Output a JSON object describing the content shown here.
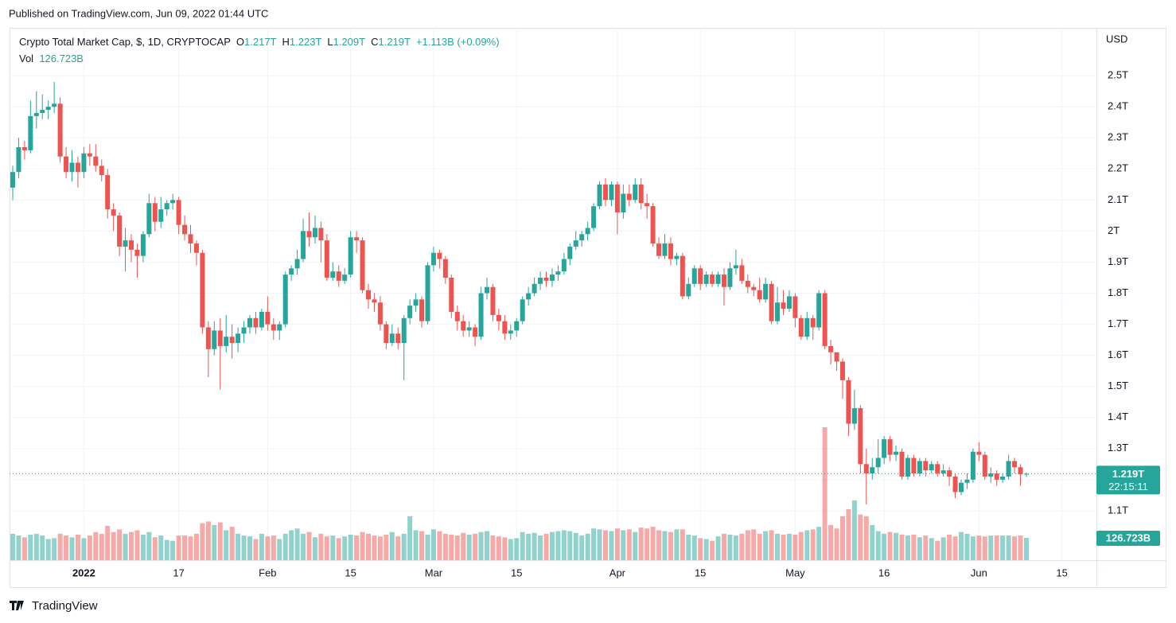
{
  "header": {
    "published": "Published on TradingView.com, Jun 09, 2022 01:44 UTC",
    "footer": "TradingView"
  },
  "chart_data": {
    "type": "candlestick",
    "title": "Crypto Total Market Cap, $, 1D, CRYPTOCAP",
    "legend": {
      "o": "O",
      "open": "1.217T",
      "h": "H",
      "high": "1.223T",
      "l": "L",
      "low": "1.209T",
      "c": "C",
      "close": "1.219T",
      "change": "+1.113B (+0.09%)",
      "vol": "Vol",
      "volume": "126.723B"
    },
    "y_axis_label": "USD",
    "x": [
      "2021-12-20",
      "2021-12-21",
      "2021-12-22",
      "2021-12-23",
      "2021-12-24",
      "2021-12-25",
      "2021-12-26",
      "2021-12-27",
      "2021-12-28",
      "2021-12-29",
      "2021-12-30",
      "2021-12-31",
      "2022-01-01",
      "2022-01-02",
      "2022-01-03",
      "2022-01-04",
      "2022-01-05",
      "2022-01-06",
      "2022-01-07",
      "2022-01-08",
      "2022-01-09",
      "2022-01-10",
      "2022-01-11",
      "2022-01-12",
      "2022-01-13",
      "2022-01-14",
      "2022-01-15",
      "2022-01-16",
      "2022-01-17",
      "2022-01-18",
      "2022-01-19",
      "2022-01-20",
      "2022-01-21",
      "2022-01-22",
      "2022-01-23",
      "2022-01-24",
      "2022-01-25",
      "2022-01-26",
      "2022-01-27",
      "2022-01-28",
      "2022-01-29",
      "2022-01-30",
      "2022-01-31",
      "2022-02-01",
      "2022-02-02",
      "2022-02-03",
      "2022-02-04",
      "2022-02-05",
      "2022-02-06",
      "2022-02-07",
      "2022-02-08",
      "2022-02-09",
      "2022-02-10",
      "2022-02-11",
      "2022-02-12",
      "2022-02-13",
      "2022-02-14",
      "2022-02-15",
      "2022-02-16",
      "2022-02-17",
      "2022-02-18",
      "2022-02-19",
      "2022-02-20",
      "2022-02-21",
      "2022-02-22",
      "2022-02-23",
      "2022-02-24",
      "2022-02-25",
      "2022-02-26",
      "2022-02-27",
      "2022-02-28",
      "2022-03-01",
      "2022-03-02",
      "2022-03-03",
      "2022-03-04",
      "2022-03-05",
      "2022-03-06",
      "2022-03-07",
      "2022-03-08",
      "2022-03-09",
      "2022-03-10",
      "2022-03-11",
      "2022-03-12",
      "2022-03-13",
      "2022-03-14",
      "2022-03-15",
      "2022-03-16",
      "2022-03-17",
      "2022-03-18",
      "2022-03-19",
      "2022-03-20",
      "2022-03-21",
      "2022-03-22",
      "2022-03-23",
      "2022-03-24",
      "2022-03-25",
      "2022-03-26",
      "2022-03-27",
      "2022-03-28",
      "2022-03-29",
      "2022-03-30",
      "2022-03-31",
      "2022-04-01",
      "2022-04-02",
      "2022-04-03",
      "2022-04-04",
      "2022-04-05",
      "2022-04-06",
      "2022-04-07",
      "2022-04-08",
      "2022-04-09",
      "2022-04-10",
      "2022-04-11",
      "2022-04-12",
      "2022-04-13",
      "2022-04-14",
      "2022-04-15",
      "2022-04-16",
      "2022-04-17",
      "2022-04-18",
      "2022-04-19",
      "2022-04-20",
      "2022-04-21",
      "2022-04-22",
      "2022-04-23",
      "2022-04-24",
      "2022-04-25",
      "2022-04-26",
      "2022-04-27",
      "2022-04-28",
      "2022-04-29",
      "2022-04-30",
      "2022-05-01",
      "2022-05-02",
      "2022-05-03",
      "2022-05-04",
      "2022-05-05",
      "2022-05-06",
      "2022-05-07",
      "2022-05-08",
      "2022-05-09",
      "2022-05-10",
      "2022-05-11",
      "2022-05-12",
      "2022-05-13",
      "2022-05-14",
      "2022-05-15",
      "2022-05-16",
      "2022-05-17",
      "2022-05-18",
      "2022-05-19",
      "2022-05-20",
      "2022-05-21",
      "2022-05-22",
      "2022-05-23",
      "2022-05-24",
      "2022-05-25",
      "2022-05-26",
      "2022-05-27",
      "2022-05-28",
      "2022-05-29",
      "2022-05-30",
      "2022-05-31",
      "2022-06-01",
      "2022-06-02",
      "2022-06-03",
      "2022-06-04",
      "2022-06-05",
      "2022-06-06",
      "2022-06-07",
      "2022-06-08",
      "2022-06-09"
    ],
    "open": [
      2.14,
      2.19,
      2.27,
      2.26,
      2.37,
      2.38,
      2.39,
      2.4,
      2.41,
      2.24,
      2.19,
      2.22,
      2.19,
      2.25,
      2.24,
      2.21,
      2.18,
      2.07,
      2.05,
      1.95,
      1.97,
      1.94,
      1.92,
      1.99,
      2.09,
      2.03,
      2.07,
      2.09,
      2.1,
      2.02,
      1.99,
      1.96,
      1.93,
      1.69,
      1.62,
      1.68,
      1.63,
      1.66,
      1.64,
      1.67,
      1.69,
      1.72,
      1.69,
      1.74,
      1.7,
      1.68,
      1.7,
      1.86,
      1.88,
      1.91,
      2.0,
      1.98,
      2.01,
      1.97,
      1.85,
      1.87,
      1.84,
      1.86,
      1.98,
      1.97,
      1.81,
      1.78,
      1.77,
      1.7,
      1.64,
      1.67,
      1.64,
      1.72,
      1.76,
      1.78,
      1.71,
      1.89,
      1.93,
      1.91,
      1.85,
      1.74,
      1.71,
      1.68,
      1.69,
      1.66,
      1.8,
      1.82,
      1.73,
      1.71,
      1.67,
      1.68,
      1.71,
      1.78,
      1.8,
      1.83,
      1.85,
      1.84,
      1.86,
      1.87,
      1.91,
      1.95,
      1.97,
      1.99,
      2.01,
      2.08,
      2.15,
      2.1,
      2.15,
      2.06,
      2.12,
      2.1,
      2.15,
      2.09,
      2.08,
      1.96,
      1.92,
      1.96,
      1.91,
      1.92,
      1.79,
      1.83,
      1.88,
      1.83,
      1.86,
      1.83,
      1.86,
      1.82,
      1.88,
      1.89,
      1.84,
      1.82,
      1.81,
      1.78,
      1.83,
      1.71,
      1.77,
      1.75,
      1.79,
      1.72,
      1.66,
      1.72,
      1.69,
      1.8,
      1.63,
      1.61,
      1.58,
      1.52,
      1.38,
      1.43,
      1.25,
      1.22,
      1.24,
      1.27,
      1.33,
      1.28,
      1.29,
      1.21,
      1.27,
      1.22,
      1.26,
      1.23,
      1.25,
      1.22,
      1.23,
      1.21,
      1.16,
      1.19,
      1.2,
      1.29,
      1.28,
      1.21,
      1.22,
      1.2,
      1.21,
      1.26,
      1.24,
      1.217
    ],
    "high": [
      2.21,
      2.3,
      2.29,
      2.42,
      2.45,
      2.44,
      2.42,
      2.48,
      2.43,
      2.27,
      2.26,
      2.24,
      2.27,
      2.28,
      2.28,
      2.23,
      2.2,
      2.09,
      2.06,
      2.01,
      1.99,
      1.96,
      2.0,
      2.12,
      2.11,
      2.11,
      2.1,
      2.12,
      2.11,
      2.05,
      2.02,
      1.97,
      1.94,
      1.71,
      1.71,
      1.72,
      1.73,
      1.7,
      1.69,
      1.71,
      1.73,
      1.74,
      1.75,
      1.79,
      1.72,
      1.71,
      1.87,
      1.89,
      1.94,
      2.04,
      2.06,
      2.05,
      2.03,
      1.99,
      1.9,
      1.89,
      1.88,
      2.0,
      2.0,
      1.98,
      1.83,
      1.8,
      1.79,
      1.71,
      1.7,
      1.69,
      1.73,
      1.78,
      1.8,
      1.79,
      1.9,
      1.95,
      1.94,
      1.92,
      1.86,
      1.76,
      1.73,
      1.71,
      1.7,
      1.82,
      1.85,
      1.83,
      1.75,
      1.73,
      1.7,
      1.72,
      1.79,
      1.82,
      1.85,
      1.87,
      1.87,
      1.88,
      1.89,
      1.93,
      1.96,
      2.0,
      2.0,
      2.03,
      2.09,
      2.16,
      2.17,
      2.16,
      2.16,
      2.15,
      2.15,
      2.17,
      2.17,
      2.12,
      2.09,
      1.98,
      1.99,
      1.98,
      1.93,
      1.93,
      1.85,
      1.89,
      1.89,
      1.87,
      1.87,
      1.87,
      1.88,
      1.9,
      1.94,
      1.91,
      1.86,
      1.83,
      1.85,
      1.85,
      1.84,
      1.82,
      1.81,
      1.81,
      1.8,
      1.73,
      1.74,
      1.73,
      1.81,
      1.81,
      1.65,
      1.61,
      1.59,
      1.53,
      1.49,
      1.44,
      1.3,
      1.27,
      1.33,
      1.34,
      1.34,
      1.31,
      1.3,
      1.28,
      1.28,
      1.27,
      1.27,
      1.26,
      1.26,
      1.25,
      1.24,
      1.22,
      1.2,
      1.22,
      1.3,
      1.32,
      1.29,
      1.24,
      1.23,
      1.22,
      1.28,
      1.27,
      1.25,
      1.223
    ],
    "low": [
      2.1,
      2.17,
      2.23,
      2.25,
      2.33,
      2.36,
      2.36,
      2.38,
      2.22,
      2.17,
      2.16,
      2.14,
      2.17,
      2.21,
      2.19,
      2.16,
      2.04,
      2.0,
      1.92,
      1.87,
      1.9,
      1.85,
      1.9,
      1.98,
      2.0,
      2.01,
      2.05,
      2.07,
      1.99,
      1.97,
      1.93,
      1.89,
      1.67,
      1.53,
      1.6,
      1.49,
      1.61,
      1.59,
      1.61,
      1.64,
      1.67,
      1.67,
      1.68,
      1.68,
      1.65,
      1.65,
      1.69,
      1.84,
      1.86,
      1.9,
      1.95,
      1.96,
      1.9,
      1.84,
      1.84,
      1.82,
      1.83,
      1.85,
      1.93,
      1.8,
      1.75,
      1.74,
      1.68,
      1.62,
      1.63,
      1.62,
      1.52,
      1.7,
      1.74,
      1.69,
      1.7,
      1.87,
      1.88,
      1.83,
      1.72,
      1.68,
      1.66,
      1.66,
      1.63,
      1.65,
      1.78,
      1.71,
      1.68,
      1.65,
      1.65,
      1.66,
      1.7,
      1.76,
      1.79,
      1.81,
      1.82,
      1.82,
      1.84,
      1.86,
      1.89,
      1.94,
      1.95,
      1.97,
      2.0,
      2.07,
      2.08,
      2.08,
      1.99,
      2.04,
      2.08,
      2.09,
      2.07,
      2.04,
      1.95,
      1.91,
      1.91,
      1.89,
      1.89,
      1.78,
      1.78,
      1.82,
      1.81,
      1.82,
      1.82,
      1.82,
      1.76,
      1.81,
      1.86,
      1.83,
      1.8,
      1.79,
      1.77,
      1.77,
      1.7,
      1.7,
      1.73,
      1.74,
      1.69,
      1.65,
      1.65,
      1.65,
      1.68,
      1.62,
      1.57,
      1.55,
      1.46,
      1.34,
      1.36,
      1.22,
      1.12,
      1.2,
      1.22,
      1.25,
      1.26,
      1.26,
      1.2,
      1.2,
      1.21,
      1.21,
      1.21,
      1.22,
      1.21,
      1.21,
      1.18,
      1.14,
      1.15,
      1.17,
      1.19,
      1.26,
      1.2,
      1.19,
      1.18,
      1.19,
      1.2,
      1.22,
      1.18,
      1.209
    ],
    "close": [
      2.19,
      2.27,
      2.26,
      2.37,
      2.38,
      2.39,
      2.4,
      2.41,
      2.24,
      2.19,
      2.22,
      2.19,
      2.25,
      2.24,
      2.21,
      2.18,
      2.07,
      2.05,
      1.95,
      1.97,
      1.94,
      1.92,
      1.99,
      2.09,
      2.03,
      2.07,
      2.09,
      2.1,
      2.02,
      1.99,
      1.96,
      1.93,
      1.69,
      1.62,
      1.68,
      1.63,
      1.66,
      1.64,
      1.67,
      1.69,
      1.72,
      1.69,
      1.74,
      1.7,
      1.68,
      1.7,
      1.86,
      1.88,
      1.91,
      2.0,
      1.98,
      2.01,
      1.97,
      1.85,
      1.87,
      1.84,
      1.86,
      1.98,
      1.97,
      1.81,
      1.78,
      1.77,
      1.7,
      1.64,
      1.67,
      1.64,
      1.72,
      1.76,
      1.78,
      1.71,
      1.89,
      1.93,
      1.91,
      1.85,
      1.74,
      1.71,
      1.68,
      1.69,
      1.66,
      1.8,
      1.82,
      1.73,
      1.71,
      1.67,
      1.68,
      1.71,
      1.78,
      1.8,
      1.83,
      1.85,
      1.84,
      1.86,
      1.87,
      1.91,
      1.95,
      1.97,
      1.99,
      2.01,
      2.08,
      2.15,
      2.1,
      2.15,
      2.06,
      2.12,
      2.1,
      2.15,
      2.09,
      2.08,
      1.96,
      1.92,
      1.96,
      1.91,
      1.92,
      1.79,
      1.83,
      1.88,
      1.83,
      1.86,
      1.83,
      1.86,
      1.82,
      1.88,
      1.89,
      1.84,
      1.82,
      1.81,
      1.78,
      1.83,
      1.71,
      1.77,
      1.75,
      1.79,
      1.72,
      1.66,
      1.72,
      1.69,
      1.8,
      1.63,
      1.61,
      1.58,
      1.52,
      1.38,
      1.43,
      1.25,
      1.22,
      1.24,
      1.27,
      1.33,
      1.28,
      1.29,
      1.21,
      1.27,
      1.22,
      1.26,
      1.23,
      1.25,
      1.22,
      1.23,
      1.21,
      1.16,
      1.19,
      1.2,
      1.29,
      1.28,
      1.21,
      1.22,
      1.2,
      1.21,
      1.26,
      1.24,
      1.217,
      1.219
    ],
    "volume": [
      150,
      140,
      130,
      145,
      150,
      140,
      120,
      125,
      150,
      140,
      130,
      145,
      125,
      140,
      160,
      150,
      195,
      160,
      175,
      150,
      160,
      170,
      145,
      160,
      130,
      140,
      115,
      110,
      140,
      140,
      135,
      150,
      210,
      220,
      200,
      215,
      170,
      190,
      150,
      140,
      135,
      120,
      150,
      135,
      140,
      120,
      150,
      170,
      180,
      150,
      160,
      130,
      150,
      135,
      140,
      125,
      135,
      145,
      140,
      160,
      150,
      140,
      135,
      145,
      160,
      135,
      150,
      250,
      170,
      165,
      145,
      175,
      165,
      150,
      145,
      140,
      155,
      145,
      150,
      160,
      165,
      140,
      135,
      130,
      120,
      125,
      160,
      150,
      155,
      140,
      150,
      160,
      165,
      170,
      165,
      155,
      140,
      150,
      180,
      175,
      170,
      165,
      180,
      170,
      175,
      160,
      185,
      180,
      190,
      170,
      165,
      160,
      175,
      175,
      145,
      140,
      125,
      120,
      110,
      135,
      150,
      145,
      140,
      150,
      170,
      175,
      150,
      165,
      170,
      150,
      145,
      150,
      145,
      160,
      170,
      175,
      190,
      756,
      200,
      180,
      250,
      290,
      340,
      260,
      250,
      200,
      165,
      150,
      160,
      155,
      145,
      140,
      145,
      130,
      140,
      125,
      110,
      130,
      145,
      135,
      160,
      150,
      135,
      140,
      135,
      140,
      140,
      140,
      140,
      135,
      140,
      126.723
    ],
    "up_color": "#26a69a",
    "down_color": "#ef5350",
    "ylim": [
      0.941,
      2.654
    ],
    "yticks": [
      {
        "value": 1.1,
        "label": "1.1T"
      },
      {
        "value": 1.2,
        "label": "1.2T"
      },
      {
        "value": 1.3,
        "label": "1.3T"
      },
      {
        "value": 1.4,
        "label": "1.4T"
      },
      {
        "value": 1.5,
        "label": "1.5T"
      },
      {
        "value": 1.6,
        "label": "1.6T"
      },
      {
        "value": 1.7,
        "label": "1.7T"
      },
      {
        "value": 1.8,
        "label": "1.8T"
      },
      {
        "value": 1.9,
        "label": "1.9T"
      },
      {
        "value": 2,
        "label": "2T"
      },
      {
        "value": 2.1,
        "label": "2.1T"
      },
      {
        "value": 2.2,
        "label": "2.2T"
      },
      {
        "value": 2.3,
        "label": "2.3T"
      },
      {
        "value": 2.4,
        "label": "2.4T"
      },
      {
        "value": 2.5,
        "label": "2.5T"
      }
    ],
    "xticks": [
      {
        "value": "2022-01-01",
        "label": "2022"
      },
      {
        "value": "2022-01-17",
        "label": "17"
      },
      {
        "value": "2022-02-01",
        "label": "Feb"
      },
      {
        "value": "2022-02-15",
        "label": "15"
      },
      {
        "value": "2022-03-01",
        "label": "Mar"
      },
      {
        "value": "2022-03-15",
        "label": "15"
      },
      {
        "value": "2022-04-01",
        "label": "Apr"
      },
      {
        "value": "2022-04-15",
        "label": "15"
      },
      {
        "value": "2022-05-01",
        "label": "May"
      },
      {
        "value": "2022-05-16",
        "label": "16"
      },
      {
        "value": "2022-06-01",
        "label": "Jun"
      },
      {
        "value": "2022-06-15",
        "label": "15"
      }
    ],
    "grid": true,
    "price_label": "1.219T",
    "countdown": "22:15:11",
    "volume_label": "126.723B"
  }
}
